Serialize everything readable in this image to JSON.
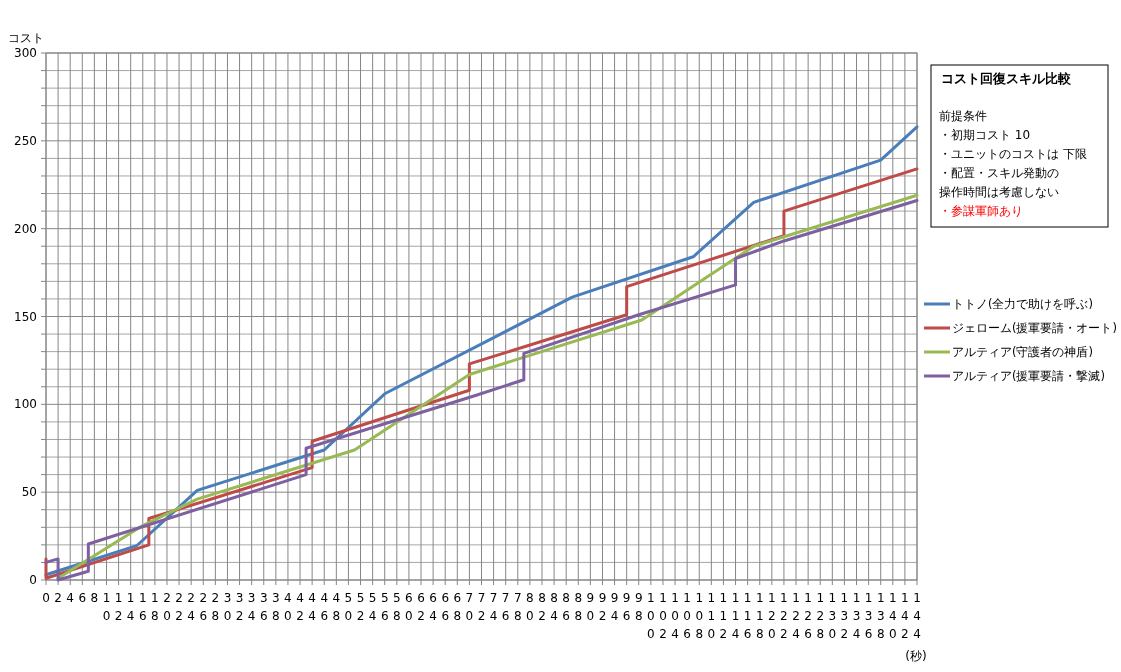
{
  "chart_data": {
    "type": "line",
    "title": "コスト回復スキル比較",
    "annotations": [
      "前提条件",
      "・初期コスト 10",
      "・ユニットのコストは 下限",
      "・配置・スキル発動の",
      "操作時間は考慮しない",
      "・参謀軍師あり"
    ],
    "xlabel": "(秒)",
    "ylabel": "コスト",
    "xlim": [
      0,
      144
    ],
    "xticks": [
      0,
      2,
      4,
      6,
      8,
      10,
      12,
      14,
      16,
      18,
      20,
      22,
      24,
      26,
      28,
      30,
      32,
      34,
      36,
      38,
      40,
      42,
      44,
      46,
      48,
      50,
      52,
      54,
      56,
      58,
      60,
      62,
      64,
      66,
      68,
      70,
      72,
      74,
      76,
      78,
      80,
      82,
      84,
      86,
      88,
      90,
      92,
      94,
      96,
      98,
      100,
      102,
      104,
      106,
      108,
      110,
      112,
      114,
      116,
      118,
      120,
      122,
      124,
      126,
      128,
      130,
      132,
      134,
      136,
      138,
      140,
      142,
      144
    ],
    "ylim": [
      0,
      300
    ],
    "yticks": [
      0,
      {
        "value": 10,
        "label": null
      },
      {
        "value": 20,
        "label": null
      },
      {
        "value": 30,
        "label": null
      },
      {
        "value": 40,
        "label": null
      },
      50,
      {
        "value": 60,
        "label": null
      },
      {
        "value": 70,
        "label": null
      },
      {
        "value": 80,
        "label": null
      },
      {
        "value": 90,
        "label": null
      },
      100,
      {
        "value": 110,
        "label": null
      },
      {
        "value": 120,
        "label": null
      },
      {
        "value": 130,
        "label": null
      },
      {
        "value": 140,
        "label": null
      },
      150,
      {
        "value": 160,
        "label": null
      },
      {
        "value": 170,
        "label": null
      },
      {
        "value": 180,
        "label": null
      },
      {
        "value": 190,
        "label": null
      },
      200,
      {
        "value": 210,
        "label": null
      },
      {
        "value": 220,
        "label": null
      },
      {
        "value": 230,
        "label": null
      },
      {
        "value": 240,
        "label": null
      },
      250,
      {
        "value": 260,
        "label": null
      },
      {
        "value": 270,
        "label": null
      },
      {
        "value": 280,
        "label": null
      },
      {
        "value": 290,
        "label": null
      },
      300
    ],
    "grid": true,
    "legend": "right",
    "marker": "none",
    "line_style": "solid",
    "series": [
      {
        "name": "トトノ(全力で助けを呼ぶ)",
        "color": "#4a7ebb",
        "x": [
          0,
          15,
          25,
          46,
          56,
          87,
          107,
          117,
          138,
          144
        ],
        "values": [
          3,
          19.5,
          51,
          74,
          106,
          161,
          184,
          215,
          239,
          258
        ]
      },
      {
        "name": "ジェローム(援軍要請・オート)",
        "color": "#be4b48",
        "x": [
          0,
          0,
          17,
          17,
          44,
          44,
          70,
          70,
          96,
          96,
          122,
          122,
          144
        ],
        "values": [
          12,
          1,
          20,
          35,
          64,
          79,
          108,
          123,
          151,
          167,
          196,
          210,
          234
        ]
      },
      {
        "name": "アルティア(守護者の神盾)",
        "color": "#98b954",
        "x": [
          2,
          16,
          25,
          51,
          70,
          98.5,
          117,
          144
        ],
        "values": [
          1,
          31,
          46,
          74,
          117,
          148,
          190,
          219
        ]
      },
      {
        "name": "アルティア(援軍要請・撃滅)",
        "color": "#7d60a0",
        "x": [
          0,
          2,
          2,
          7,
          7,
          43,
          43,
          71,
          79,
          79,
          98,
          114,
          114,
          122,
          144
        ],
        "values": [
          10,
          12,
          0,
          5,
          20.5,
          60,
          75,
          105,
          114,
          129,
          151,
          168,
          183,
          193,
          216
        ]
      }
    ]
  }
}
